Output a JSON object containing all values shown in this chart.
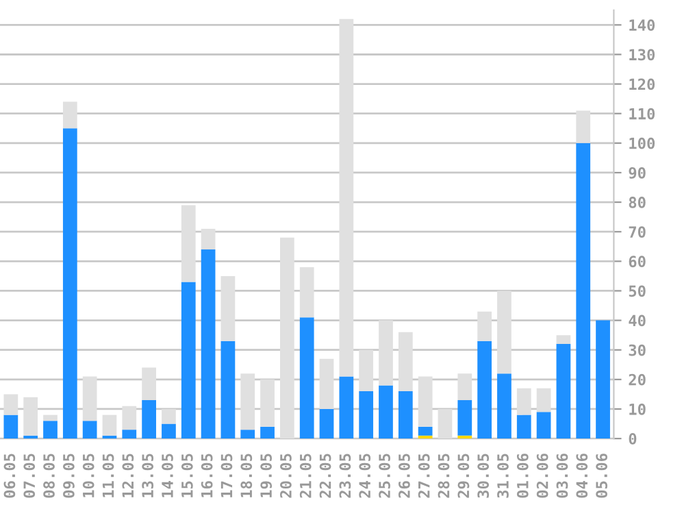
{
  "chart_data": {
    "type": "bar",
    "stacked": true,
    "categories": [
      "06.05",
      "07.05",
      "08.05",
      "09.05",
      "10.05",
      "11.05",
      "12.05",
      "13.05",
      "14.05",
      "15.05",
      "16.05",
      "17.05",
      "18.05",
      "19.05",
      "20.05",
      "21.05",
      "22.05",
      "23.05",
      "24.05",
      "25.05",
      "26.05",
      "27.05",
      "28.05",
      "29.05",
      "30.05",
      "31.05",
      "01.06",
      "02.06",
      "03.06",
      "04.06",
      "05.06"
    ],
    "series": [
      {
        "color": "#ffd700",
        "values": [
          0,
          0,
          0,
          0,
          0,
          0,
          0,
          0,
          0,
          0,
          0,
          0,
          0,
          0,
          0,
          0,
          0,
          0,
          0,
          0,
          0,
          1,
          0,
          1,
          0,
          0,
          0,
          0,
          0,
          0,
          0
        ]
      },
      {
        "color": "#1e90ff",
        "values": [
          8,
          1,
          6,
          105,
          6,
          1,
          3,
          13,
          5,
          53,
          64,
          33,
          3,
          4,
          0,
          41,
          10,
          21,
          16,
          18,
          16,
          3,
          0,
          12,
          33,
          22,
          8,
          9,
          32,
          100,
          40
        ]
      },
      {
        "color": "#e0e0e0",
        "values": [
          7,
          13,
          2,
          9,
          15,
          7,
          8,
          11,
          5,
          26,
          7,
          22,
          19,
          16,
          68,
          17,
          17,
          121,
          14,
          22,
          20,
          17,
          10,
          9,
          10,
          28,
          9,
          8,
          3,
          11,
          0
        ]
      }
    ],
    "ylim": [
      0,
      145
    ],
    "yticks": [
      0,
      10,
      20,
      30,
      40,
      50,
      60,
      70,
      80,
      90,
      100,
      110,
      120,
      130,
      140
    ],
    "grid": "y",
    "legend": false
  }
}
